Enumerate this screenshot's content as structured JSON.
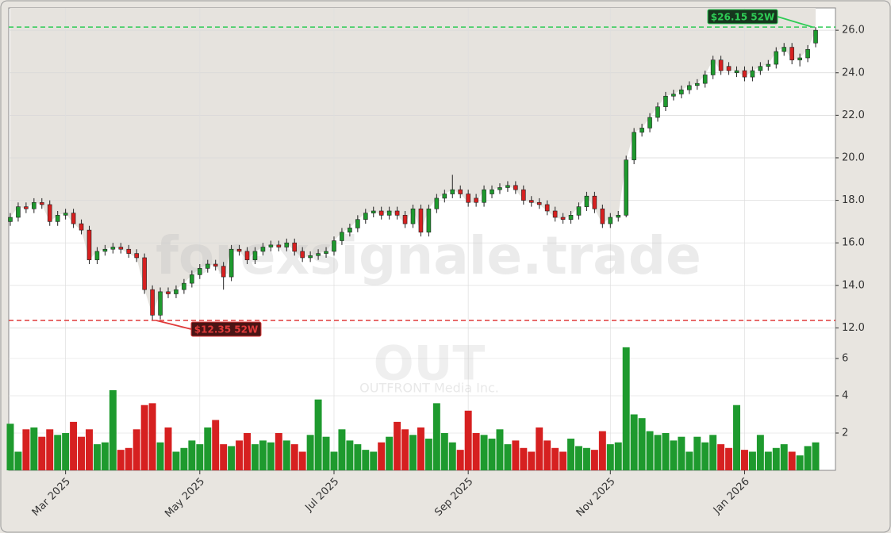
{
  "chart_data": {
    "type": "candlestick",
    "categories": [
      null,
      null,
      null,
      null,
      null,
      null,
      null,
      "Mar 2025",
      null,
      null,
      null,
      null,
      null,
      null,
      null,
      null,
      null,
      null,
      null,
      null,
      null,
      null,
      null,
      null,
      "May 2025",
      null,
      null,
      null,
      null,
      null,
      null,
      null,
      null,
      null,
      null,
      null,
      null,
      null,
      null,
      null,
      null,
      "Jul 2025",
      null,
      null,
      null,
      null,
      null,
      null,
      null,
      null,
      null,
      null,
      null,
      null,
      null,
      null,
      null,
      null,
      "Sep 2025",
      null,
      null,
      null,
      null,
      null,
      null,
      null,
      null,
      null,
      null,
      null,
      null,
      null,
      null,
      null,
      null,
      null,
      "Nov 2025",
      null,
      null,
      null,
      null,
      null,
      null,
      null,
      null,
      null,
      null,
      null,
      null,
      null,
      null,
      null,
      null,
      "Jan 2026",
      null,
      null,
      null,
      null,
      null,
      null,
      null,
      null,
      null
    ],
    "open": [
      17.0,
      17.2,
      17.7,
      17.6,
      17.9,
      17.8,
      17.0,
      17.3,
      17.4,
      16.9,
      16.6,
      15.2,
      15.6,
      15.7,
      15.8,
      15.7,
      15.5,
      15.3,
      13.8,
      12.6,
      13.7,
      13.6,
      13.8,
      14.1,
      14.5,
      14.8,
      15.0,
      14.9,
      14.4,
      15.7,
      15.6,
      15.2,
      15.6,
      15.8,
      15.9,
      15.8,
      16.0,
      15.6,
      15.3,
      15.4,
      15.5,
      15.6,
      16.1,
      16.5,
      16.7,
      17.1,
      17.4,
      17.5,
      17.3,
      17.5,
      17.3,
      16.9,
      17.6,
      16.5,
      17.6,
      18.1,
      18.3,
      18.5,
      18.3,
      18.1,
      17.9,
      18.3,
      18.5,
      18.6,
      18.7,
      18.5,
      18.0,
      17.9,
      17.8,
      17.5,
      17.2,
      17.1,
      17.3,
      17.7,
      18.2,
      17.6,
      16.9,
      17.2,
      17.3,
      19.9,
      21.2,
      21.4,
      21.9,
      22.4,
      22.9,
      23.0,
      23.2,
      23.4,
      23.5,
      23.9,
      24.6,
      24.3,
      24.0,
      24.1,
      23.8,
      24.1,
      24.3,
      24.4,
      25.0,
      25.2,
      24.6,
      24.7,
      25.4
    ],
    "high": [
      17.4,
      17.9,
      17.9,
      18.1,
      18.1,
      18.0,
      17.5,
      17.6,
      17.6,
      17.1,
      16.8,
      15.8,
      15.9,
      16.0,
      16.0,
      15.9,
      15.7,
      15.5,
      14.0,
      13.9,
      13.9,
      14.0,
      14.3,
      14.7,
      15.0,
      15.2,
      15.2,
      15.1,
      15.9,
      15.9,
      15.8,
      15.8,
      16.0,
      16.1,
      16.1,
      16.2,
      16.2,
      15.8,
      15.6,
      15.7,
      15.8,
      16.3,
      16.7,
      16.9,
      17.3,
      17.6,
      17.7,
      17.7,
      17.7,
      17.7,
      17.5,
      17.8,
      17.8,
      17.8,
      18.3,
      18.5,
      19.2,
      18.7,
      18.5,
      18.3,
      18.7,
      18.7,
      18.8,
      18.9,
      18.9,
      18.7,
      18.2,
      18.1,
      18.0,
      17.7,
      17.4,
      17.5,
      17.9,
      18.4,
      18.4,
      17.8,
      17.4,
      17.5,
      20.1,
      21.4,
      21.6,
      22.1,
      22.6,
      23.1,
      23.2,
      23.4,
      23.6,
      23.7,
      24.1,
      24.8,
      24.8,
      24.5,
      24.3,
      24.3,
      24.3,
      24.5,
      24.6,
      25.2,
      25.4,
      25.4,
      24.9,
      25.3,
      26.15
    ],
    "low": [
      16.8,
      17.0,
      17.4,
      17.4,
      17.6,
      16.8,
      16.8,
      17.1,
      16.7,
      16.4,
      15.0,
      15.0,
      15.4,
      15.5,
      15.5,
      15.3,
      15.1,
      13.6,
      12.35,
      12.4,
      13.4,
      13.4,
      13.6,
      13.9,
      14.3,
      14.6,
      14.7,
      13.8,
      14.2,
      15.4,
      15.0,
      15.0,
      15.4,
      15.6,
      15.6,
      15.6,
      15.4,
      15.1,
      15.1,
      15.2,
      15.3,
      15.4,
      15.9,
      16.3,
      16.5,
      16.9,
      17.2,
      17.1,
      17.1,
      17.1,
      16.7,
      16.7,
      16.3,
      16.3,
      17.4,
      17.9,
      18.1,
      18.1,
      17.7,
      17.7,
      17.7,
      18.1,
      18.3,
      18.4,
      18.3,
      17.8,
      17.7,
      17.6,
      17.3,
      17.0,
      16.9,
      16.9,
      17.1,
      17.5,
      17.4,
      16.7,
      16.7,
      17.0,
      17.2,
      19.7,
      21.0,
      21.2,
      21.7,
      22.2,
      22.7,
      22.8,
      23.0,
      23.2,
      23.3,
      23.7,
      23.9,
      23.9,
      23.8,
      23.6,
      23.6,
      23.9,
      24.1,
      24.2,
      24.8,
      24.4,
      24.3,
      24.5,
      25.2
    ],
    "close": [
      17.2,
      17.7,
      17.6,
      17.9,
      17.8,
      17.0,
      17.3,
      17.4,
      16.9,
      16.6,
      15.2,
      15.6,
      15.7,
      15.8,
      15.7,
      15.5,
      15.3,
      13.8,
      12.6,
      13.7,
      13.6,
      13.8,
      14.1,
      14.5,
      14.8,
      15.0,
      14.9,
      14.4,
      15.7,
      15.6,
      15.2,
      15.6,
      15.8,
      15.9,
      15.8,
      16.0,
      15.6,
      15.3,
      15.4,
      15.5,
      15.6,
      16.1,
      16.5,
      16.7,
      17.1,
      17.4,
      17.5,
      17.3,
      17.5,
      17.3,
      16.9,
      17.6,
      16.5,
      17.6,
      18.1,
      18.3,
      18.5,
      18.3,
      17.9,
      17.9,
      18.5,
      18.5,
      18.6,
      18.7,
      18.5,
      18.0,
      17.9,
      17.8,
      17.5,
      17.2,
      17.1,
      17.3,
      17.7,
      18.2,
      17.6,
      16.9,
      17.2,
      17.3,
      19.9,
      21.2,
      21.4,
      21.9,
      22.4,
      22.9,
      23.0,
      23.2,
      23.4,
      23.5,
      23.9,
      24.6,
      24.1,
      24.1,
      24.1,
      23.8,
      24.1,
      24.3,
      24.4,
      25.0,
      25.2,
      24.6,
      24.7,
      25.1,
      26.0
    ],
    "volume": [
      2.5,
      1.0,
      2.2,
      2.3,
      1.8,
      2.2,
      1.9,
      2.0,
      2.6,
      1.8,
      2.2,
      1.4,
      1.5,
      4.3,
      1.1,
      1.2,
      2.2,
      3.5,
      3.6,
      1.5,
      2.3,
      1.0,
      1.2,
      1.6,
      1.4,
      2.3,
      2.7,
      1.4,
      1.3,
      1.6,
      2.0,
      1.4,
      1.6,
      1.5,
      2.0,
      1.6,
      1.4,
      1.0,
      1.9,
      3.8,
      1.8,
      1.0,
      2.2,
      1.6,
      1.4,
      1.1,
      1.0,
      1.5,
      1.8,
      2.6,
      2.2,
      1.9,
      2.3,
      1.7,
      3.6,
      2.0,
      1.5,
      1.1,
      3.2,
      2.0,
      1.9,
      1.7,
      2.2,
      1.4,
      1.6,
      1.2,
      1.0,
      2.3,
      1.6,
      1.2,
      1.0,
      1.7,
      1.3,
      1.2,
      1.1,
      2.1,
      1.4,
      1.5,
      6.6,
      3.0,
      2.8,
      2.1,
      1.9,
      2.0,
      1.6,
      1.8,
      1.0,
      1.8,
      1.5,
      1.9,
      1.4,
      1.2,
      3.5,
      1.1,
      1.0,
      1.9,
      1.0,
      1.2,
      1.4,
      1.0,
      0.8,
      1.3,
      1.5
    ],
    "up_color": "#1e9a2e",
    "down_color": "#d62020",
    "area_color": "#e6e3de",
    "ylim": [
      5.3,
      27.05
    ],
    "yticks": [
      {
        "value": 12,
        "label": "12.0"
      },
      {
        "value": 14,
        "label": "14.0"
      },
      {
        "value": 16,
        "label": "16.0"
      },
      {
        "value": 18,
        "label": "18.0"
      },
      {
        "value": 20,
        "label": "20.0"
      },
      {
        "value": 22,
        "label": "22.0"
      },
      {
        "value": 24,
        "label": "24.0"
      },
      {
        "value": 26,
        "label": "26.0"
      }
    ],
    "y2lim": [
      0,
      24.8
    ],
    "y2ticks": [
      2,
      4,
      6
    ],
    "grid": true,
    "high_52w": {
      "value": 26.15,
      "label": "$26.15 52W",
      "color": "#2ecc55"
    },
    "low_52w": {
      "value": 12.35,
      "label": "$12.35 52W",
      "color": "#e03a3a"
    },
    "watermark": "forexsignale.trade",
    "symbol": "OUT",
    "company": "OUTFRONT Media Inc."
  }
}
